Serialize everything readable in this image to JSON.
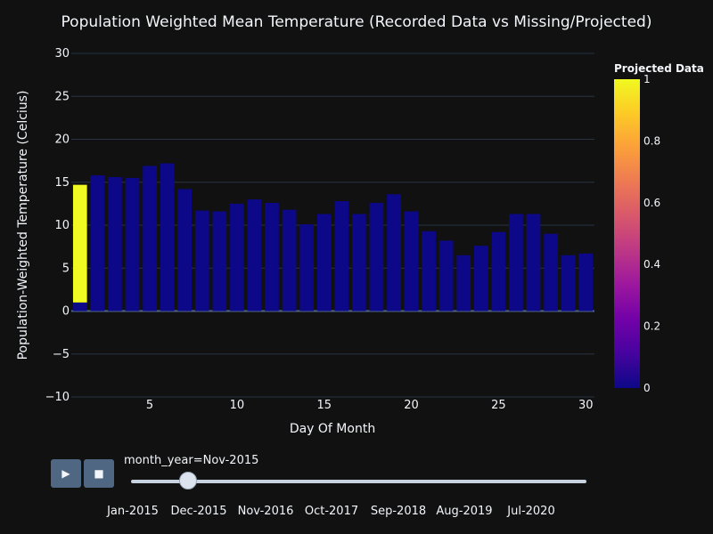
{
  "chart_data": {
    "type": "bar",
    "title": "Population Weighted Mean Temperature (Recorded Data vs Missing/Projected)",
    "xlabel": "Day Of Month",
    "ylabel": "Population-Weighted Temperature (Celcius)",
    "ylim": [
      -10,
      30
    ],
    "xlim": [
      0.5,
      30.5
    ],
    "yticks": [
      -10,
      -5,
      0,
      5,
      10,
      15,
      20,
      25,
      30
    ],
    "ytick_labels": [
      "−10",
      "−5",
      "0",
      "5",
      "10",
      "15",
      "20",
      "25",
      "30"
    ],
    "xticks": [
      5,
      10,
      15,
      20,
      25,
      30
    ],
    "grid": true,
    "series": [
      {
        "x": [
          1,
          2,
          3,
          4,
          5,
          6,
          7,
          8,
          9,
          10,
          11,
          12,
          13,
          14,
          15,
          16,
          17,
          18,
          19,
          20,
          21,
          22,
          23,
          24,
          25,
          26,
          27,
          28,
          29,
          30
        ],
        "recorded": [
          1.0,
          15.8,
          15.6,
          15.5,
          16.9,
          17.2,
          14.2,
          11.7,
          11.6,
          12.5,
          13.0,
          12.6,
          11.8,
          10.1,
          11.3,
          12.8,
          11.3,
          12.6,
          13.6,
          11.6,
          9.3,
          8.2,
          6.5,
          7.6,
          9.2,
          11.3,
          11.3,
          9.0,
          6.5,
          6.7
        ],
        "projected": [
          13.7,
          0,
          0,
          0,
          0,
          0,
          0,
          0,
          0,
          0,
          0,
          0,
          0,
          0,
          0,
          0,
          0,
          0,
          0,
          0,
          0,
          0,
          0,
          0,
          0,
          0,
          0,
          0,
          0,
          0
        ]
      }
    ],
    "colorbar": {
      "title": "Projected Data",
      "range": [
        0,
        1
      ],
      "ticks": [
        0,
        0.2,
        0.4,
        0.6,
        0.8,
        1
      ],
      "tick_labels": [
        "0",
        "0.2",
        "0.4",
        "0.6",
        "0.8",
        "1"
      ],
      "colors": [
        "#0d0887",
        "#46039f",
        "#7201a8",
        "#9c179e",
        "#bd3786",
        "#d8576b",
        "#ed7953",
        "#fb9f3a",
        "#fdca26",
        "#f0f921"
      ]
    },
    "recorded_color": "#0d0887",
    "projected_color": "#f0f921"
  },
  "controls": {
    "play_label": "▶",
    "stop_label": "■",
    "slider_current": "month_year=Nov-2015",
    "slider_position": 0.125,
    "slider_steps": [
      "Jan-2015",
      "Dec-2015",
      "Nov-2016",
      "Oct-2017",
      "Sep-2018",
      "Aug-2019",
      "Jul-2020"
    ]
  },
  "colors": {
    "background": "#111111",
    "grid": "#283442",
    "text": "#f2f5fa",
    "button": "#506784"
  }
}
